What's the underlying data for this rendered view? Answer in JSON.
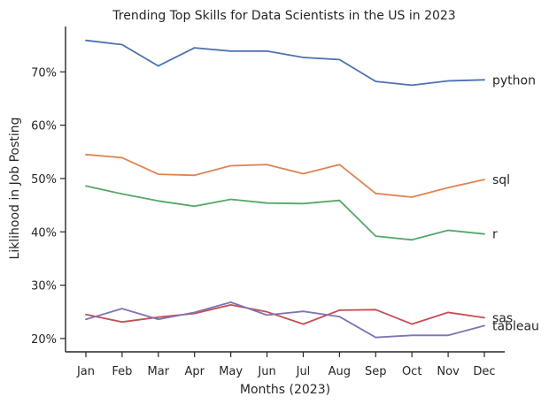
{
  "chart_data": {
    "type": "line",
    "title": "Trending Top Skills for Data Scientists in the US in 2023",
    "xlabel": "Months (2023)",
    "ylabel": "Liklihood in Job Posting",
    "categories": [
      "Jan",
      "Feb",
      "Mar",
      "Apr",
      "May",
      "Jun",
      "Jul",
      "Aug",
      "Sep",
      "Oct",
      "Nov",
      "Dec"
    ],
    "ylim": [
      17.5,
      78.5
    ],
    "yticks": [
      20,
      30,
      40,
      50,
      60,
      70
    ],
    "ytick_labels": [
      "20%",
      "30%",
      "40%",
      "50%",
      "60%",
      "70%"
    ],
    "grid": false,
    "legend": "direct labels at line ends",
    "series": [
      {
        "name": "python",
        "color": "#4c72b0",
        "values": [
          75.9,
          75.1,
          71.1,
          74.5,
          73.9,
          73.9,
          72.7,
          72.3,
          68.2,
          67.5,
          68.3,
          68.5
        ]
      },
      {
        "name": "sql",
        "color": "#dd8452",
        "values": [
          54.5,
          53.9,
          50.8,
          50.6,
          52.4,
          52.6,
          50.9,
          52.6,
          47.2,
          46.5,
          48.3,
          49.8
        ]
      },
      {
        "name": "r",
        "color": "#55a868",
        "values": [
          48.6,
          47.1,
          45.8,
          44.8,
          46.1,
          45.4,
          45.3,
          45.9,
          39.2,
          38.5,
          40.3,
          39.6
        ]
      },
      {
        "name": "sas",
        "color": "#c44e52",
        "values": [
          24.5,
          23.1,
          24.0,
          24.7,
          26.3,
          25.0,
          22.7,
          25.3,
          25.4,
          22.7,
          24.9,
          23.9
        ]
      },
      {
        "name": "tableau",
        "color": "#8172b3",
        "values": [
          23.6,
          25.6,
          23.6,
          24.9,
          26.8,
          24.4,
          25.1,
          24.1,
          20.2,
          20.6,
          20.6,
          22.4
        ]
      }
    ]
  }
}
